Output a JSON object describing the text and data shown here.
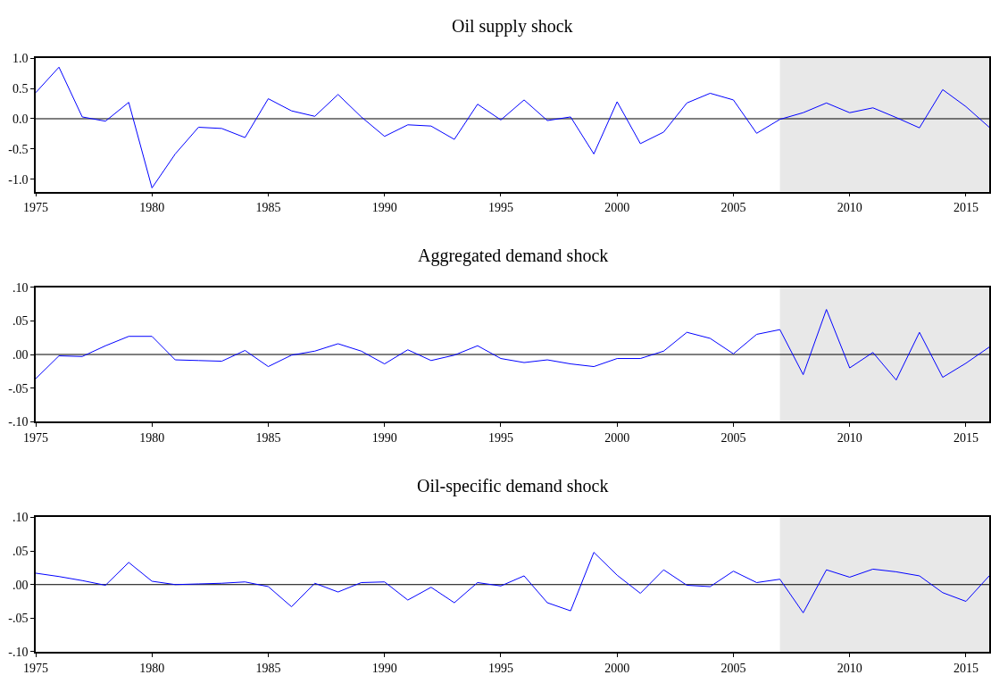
{
  "chart_data": [
    {
      "type": "line",
      "title": "Oil supply shock",
      "x": [
        1975,
        1976,
        1977,
        1978,
        1979,
        1980,
        1981,
        1982,
        1983,
        1984,
        1985,
        1986,
        1987,
        1988,
        1989,
        1990,
        1991,
        1992,
        1993,
        1994,
        1995,
        1996,
        1997,
        1998,
        1999,
        2000,
        2001,
        2002,
        2003,
        2004,
        2005,
        2006,
        2007,
        2008,
        2009,
        2010,
        2011,
        2012,
        2013,
        2014,
        2015,
        2016
      ],
      "series": [
        {
          "color": "#0000ff",
          "values": [
            0.43,
            0.85,
            0.03,
            -0.04,
            0.27,
            -1.14,
            -0.58,
            -0.14,
            -0.16,
            -0.31,
            0.33,
            0.13,
            0.04,
            0.4,
            0.03,
            -0.29,
            -0.1,
            -0.12,
            -0.34,
            0.24,
            -0.02,
            0.31,
            -0.03,
            0.03,
            -0.58,
            0.28,
            -0.41,
            -0.22,
            0.26,
            0.42,
            0.31,
            -0.24,
            -0.01,
            0.1,
            0.26,
            0.1,
            0.18,
            0.02,
            -0.15,
            0.48,
            0.2,
            -0.14
          ]
        }
      ],
      "xlim": [
        1975,
        2016
      ],
      "ylim": [
        -1.2,
        1.0
      ],
      "xticks": [
        1975,
        1980,
        1985,
        1990,
        1995,
        2000,
        2005,
        2010,
        2015
      ],
      "yticks": [
        {
          "value": 1.0,
          "label": "1.0"
        },
        {
          "value": 0.5,
          "label": "0.5"
        },
        {
          "value": 0,
          "label": "0.0"
        },
        {
          "value": -0.5,
          "label": "-0.5"
        },
        {
          "value": -1.0,
          "label": "-1.0"
        }
      ],
      "ref_lines": [
        {
          "axis": "y",
          "value": 0,
          "color": "#000000"
        }
      ],
      "bands": [
        {
          "axis": "x",
          "from": 2007,
          "to": 2016,
          "color": "#e8e8e8"
        }
      ],
      "grid": false
    },
    {
      "type": "line",
      "title": "Aggregated demand shock",
      "x": [
        1975,
        1976,
        1977,
        1978,
        1979,
        1980,
        1981,
        1982,
        1983,
        1984,
        1985,
        1986,
        1987,
        1988,
        1989,
        1990,
        1991,
        1992,
        1993,
        1994,
        1995,
        1996,
        1997,
        1998,
        1999,
        2000,
        2001,
        2002,
        2003,
        2004,
        2005,
        2006,
        2007,
        2008,
        2009,
        2010,
        2011,
        2012,
        2013,
        2014,
        2015,
        2016
      ],
      "series": [
        {
          "color": "#0000ff",
          "values": [
            -0.036,
            -0.002,
            -0.003,
            0.013,
            0.027,
            0.027,
            -0.008,
            -0.009,
            -0.01,
            0.006,
            -0.018,
            -0.001,
            0.005,
            0.016,
            0.005,
            -0.014,
            0.007,
            -0.009,
            -0.001,
            0.013,
            -0.006,
            -0.012,
            -0.008,
            -0.014,
            -0.018,
            -0.006,
            -0.006,
            0.005,
            0.033,
            0.024,
            0.001,
            0.03,
            0.037,
            -0.03,
            0.067,
            -0.02,
            0.003,
            -0.038,
            0.033,
            -0.034,
            -0.013,
            0.011
          ]
        }
      ],
      "xlim": [
        1975,
        2016
      ],
      "ylim": [
        -0.1,
        0.1
      ],
      "xticks": [
        1975,
        1980,
        1985,
        1990,
        1995,
        2000,
        2005,
        2010,
        2015
      ],
      "yticks": [
        {
          "value": 0.1,
          "label": ".10"
        },
        {
          "value": 0.05,
          "label": ".05"
        },
        {
          "value": 0,
          "label": ".00"
        },
        {
          "value": -0.05,
          "label": "-.05"
        },
        {
          "value": -0.1,
          "label": "-.10"
        }
      ],
      "ref_lines": [
        {
          "axis": "y",
          "value": 0,
          "color": "#000000"
        }
      ],
      "bands": [
        {
          "axis": "x",
          "from": 2007,
          "to": 2016,
          "color": "#e8e8e8"
        }
      ],
      "grid": false
    },
    {
      "type": "line",
      "title": "Oil-specific demand shock",
      "x": [
        1975,
        1976,
        1977,
        1978,
        1979,
        1980,
        1981,
        1982,
        1983,
        1984,
        1985,
        1986,
        1987,
        1988,
        1989,
        1990,
        1991,
        1992,
        1993,
        1994,
        1995,
        1996,
        1997,
        1998,
        1999,
        2000,
        2001,
        2002,
        2003,
        2004,
        2005,
        2006,
        2007,
        2008,
        2009,
        2010,
        2011,
        2012,
        2013,
        2014,
        2015,
        2016
      ],
      "series": [
        {
          "color": "#0000ff",
          "values": [
            0.017,
            0.012,
            0.006,
            -0.001,
            0.033,
            0.005,
            0.0,
            0.001,
            0.002,
            0.004,
            -0.003,
            -0.033,
            0.002,
            -0.011,
            0.003,
            0.004,
            -0.023,
            -0.004,
            -0.027,
            0.003,
            -0.002,
            0.013,
            -0.027,
            -0.039,
            0.048,
            0.014,
            -0.013,
            0.022,
            -0.001,
            -0.003,
            0.02,
            0.003,
            0.008,
            -0.042,
            0.022,
            0.011,
            0.023,
            0.019,
            0.013,
            -0.012,
            -0.025,
            0.013
          ]
        }
      ],
      "xlim": [
        1975,
        2016
      ],
      "ylim": [
        -0.1,
        0.1
      ],
      "xticks": [
        1975,
        1980,
        1985,
        1990,
        1995,
        2000,
        2005,
        2010,
        2015
      ],
      "yticks": [
        {
          "value": 0.1,
          "label": ".10"
        },
        {
          "value": 0.05,
          "label": ".05"
        },
        {
          "value": 0,
          "label": ".00"
        },
        {
          "value": -0.05,
          "label": "-.05"
        },
        {
          "value": -0.1,
          "label": "-.10"
        }
      ],
      "ref_lines": [
        {
          "axis": "y",
          "value": 0,
          "color": "#000000"
        }
      ],
      "bands": [
        {
          "axis": "x",
          "from": 2007,
          "to": 2016,
          "color": "#e8e8e8"
        }
      ],
      "grid": false
    }
  ]
}
